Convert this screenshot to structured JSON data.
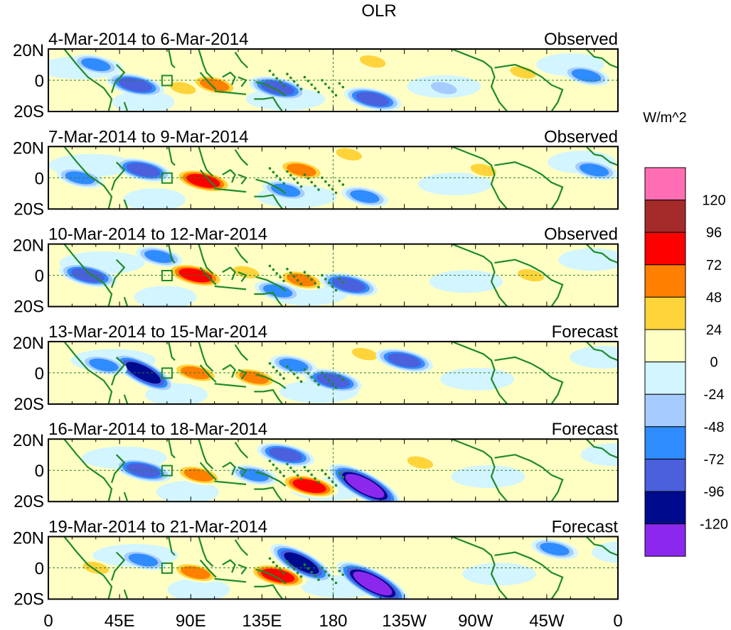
{
  "chart_data": {
    "type": "heatmap",
    "title": "OLR",
    "units": "W/m^2",
    "x_ticks": [
      "0",
      "45E",
      "90E",
      "135E",
      "180",
      "135W",
      "90W",
      "45W",
      "0"
    ],
    "y_ticks": [
      "20N",
      "0",
      "20S"
    ],
    "x_range_deg": [
      0,
      360
    ],
    "y_range_deg": [
      -20,
      20
    ],
    "panels": [
      {
        "period": "4-Mar-2014 to 6-Mar-2014",
        "kind": "Observed",
        "anomalies": [
          {
            "lon": 105,
            "lat": -3,
            "value": 48
          },
          {
            "lon": 85,
            "lat": -5,
            "value": 24
          },
          {
            "lon": 205,
            "lat": 12,
            "value": 24
          },
          {
            "lon": 300,
            "lat": 5,
            "value": 24
          },
          {
            "lon": 55,
            "lat": -3,
            "value": -72
          },
          {
            "lon": 30,
            "lat": 10,
            "value": -48
          },
          {
            "lon": 145,
            "lat": -5,
            "value": -72
          },
          {
            "lon": 205,
            "lat": -12,
            "value": -72
          },
          {
            "lon": 340,
            "lat": 3,
            "value": -48
          },
          {
            "lon": 250,
            "lat": -5,
            "value": -24
          }
        ]
      },
      {
        "period": "7-Mar-2014 to 9-Mar-2014",
        "kind": "Observed",
        "anomalies": [
          {
            "lon": 98,
            "lat": -2,
            "value": 72
          },
          {
            "lon": 160,
            "lat": 5,
            "value": 48
          },
          {
            "lon": 190,
            "lat": 15,
            "value": 24
          },
          {
            "lon": 275,
            "lat": 5,
            "value": 24
          },
          {
            "lon": 60,
            "lat": 5,
            "value": -72
          },
          {
            "lon": 20,
            "lat": 0,
            "value": -48
          },
          {
            "lon": 150,
            "lat": -8,
            "value": -48
          },
          {
            "lon": 200,
            "lat": -12,
            "value": -48
          },
          {
            "lon": 345,
            "lat": 5,
            "value": -48
          }
        ]
      },
      {
        "period": "10-Mar-2014 to 12-Mar-2014",
        "kind": "Observed",
        "anomalies": [
          {
            "lon": 93,
            "lat": 0,
            "value": 72
          },
          {
            "lon": 125,
            "lat": 2,
            "value": 24
          },
          {
            "lon": 160,
            "lat": -3,
            "value": 48
          },
          {
            "lon": 305,
            "lat": 0,
            "value": 24
          },
          {
            "lon": 25,
            "lat": 0,
            "value": -72
          },
          {
            "lon": 70,
            "lat": 12,
            "value": -48
          },
          {
            "lon": 190,
            "lat": -6,
            "value": -72
          },
          {
            "lon": 145,
            "lat": -10,
            "value": -48
          }
        ]
      },
      {
        "period": "13-Mar-2014 to 15-Mar-2014",
        "kind": "Forecast",
        "anomalies": [
          {
            "lon": 93,
            "lat": 0,
            "value": 48
          },
          {
            "lon": 130,
            "lat": -3,
            "value": 48
          },
          {
            "lon": 200,
            "lat": 12,
            "value": 24
          },
          {
            "lon": 225,
            "lat": 8,
            "value": -72
          },
          {
            "lon": 60,
            "lat": 0,
            "value": -96
          },
          {
            "lon": 180,
            "lat": -5,
            "value": -72
          },
          {
            "lon": 155,
            "lat": 5,
            "value": -48
          },
          {
            "lon": 35,
            "lat": 5,
            "value": -48
          }
        ]
      },
      {
        "period": "16-Mar-2014 to 18-Mar-2014",
        "kind": "Forecast",
        "anomalies": [
          {
            "lon": 95,
            "lat": -3,
            "value": 48
          },
          {
            "lon": 165,
            "lat": -10,
            "value": 72
          },
          {
            "lon": 235,
            "lat": 5,
            "value": 24
          },
          {
            "lon": 200,
            "lat": -10,
            "value": -120
          },
          {
            "lon": 150,
            "lat": 10,
            "value": -72
          },
          {
            "lon": 60,
            "lat": 0,
            "value": -72
          },
          {
            "lon": 130,
            "lat": -3,
            "value": -48
          }
        ]
      },
      {
        "period": "19-Mar-2014 to 21-Mar-2014",
        "kind": "Forecast",
        "anomalies": [
          {
            "lon": 93,
            "lat": -3,
            "value": 48
          },
          {
            "lon": 145,
            "lat": -5,
            "value": 72
          },
          {
            "lon": 30,
            "lat": 0,
            "value": 24
          },
          {
            "lon": 205,
            "lat": -10,
            "value": -120
          },
          {
            "lon": 160,
            "lat": 3,
            "value": -96
          },
          {
            "lon": 60,
            "lat": 5,
            "value": -48
          },
          {
            "lon": 320,
            "lat": 12,
            "value": -48
          }
        ]
      }
    ],
    "colorbar": {
      "labels": [
        "120",
        "96",
        "72",
        "48",
        "24",
        "0",
        "-24",
        "-48",
        "-72",
        "-96",
        "-120"
      ],
      "colors": [
        "#ff6eb4",
        "#a52a2a",
        "#ff0000",
        "#ff7f00",
        "#ffd43b",
        "#ffffc4",
        "#d2f5ff",
        "#a6ccff",
        "#2f8cff",
        "#4a60dd",
        "#000a8f",
        "#8c28ed"
      ]
    }
  }
}
